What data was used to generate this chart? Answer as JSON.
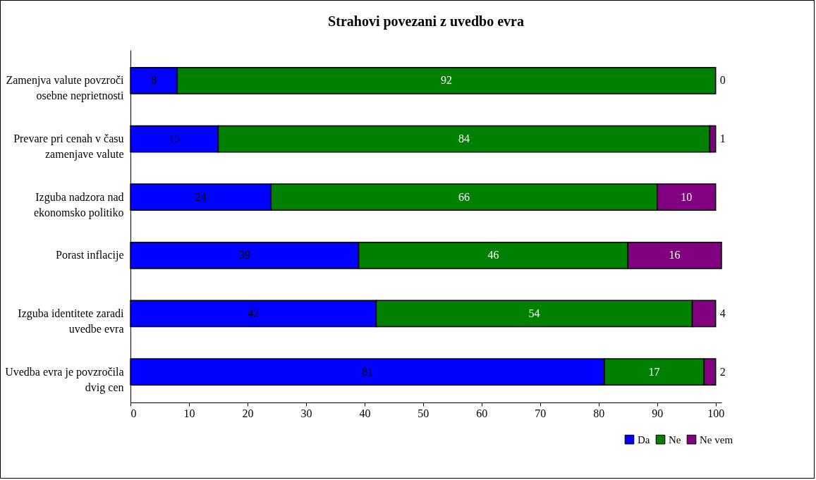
{
  "chart_data": {
    "type": "bar",
    "orientation": "horizontal",
    "stacked": true,
    "title": "Strahovi povezani z uvedbo evra",
    "categories": [
      "Zamenjva valute povzroči osebne neprietnosti",
      "Prevare pri cenah v času zamenjave valute",
      "Izguba nadzora nad ekonomsko politiko",
      "Porast inflacije",
      "Izguba identitete zaradi uvedbe evra",
      "Uvedba evra je povzročila dvig cen"
    ],
    "series": [
      {
        "name": "Da",
        "color": "#0000ff",
        "values": [
          8,
          15,
          24,
          39,
          42,
          81
        ]
      },
      {
        "name": "Ne",
        "color": "#008000",
        "values": [
          92,
          84,
          66,
          46,
          54,
          17
        ]
      },
      {
        "name": "Ne vem",
        "color": "#800080",
        "values": [
          0,
          1,
          10,
          16,
          4,
          2
        ]
      }
    ],
    "xlim": [
      0,
      101
    ],
    "xticks": [
      0,
      10,
      20,
      30,
      40,
      50,
      60,
      70,
      80,
      90,
      100
    ],
    "data_labels": true,
    "grid": false,
    "legend": "bottom right"
  }
}
